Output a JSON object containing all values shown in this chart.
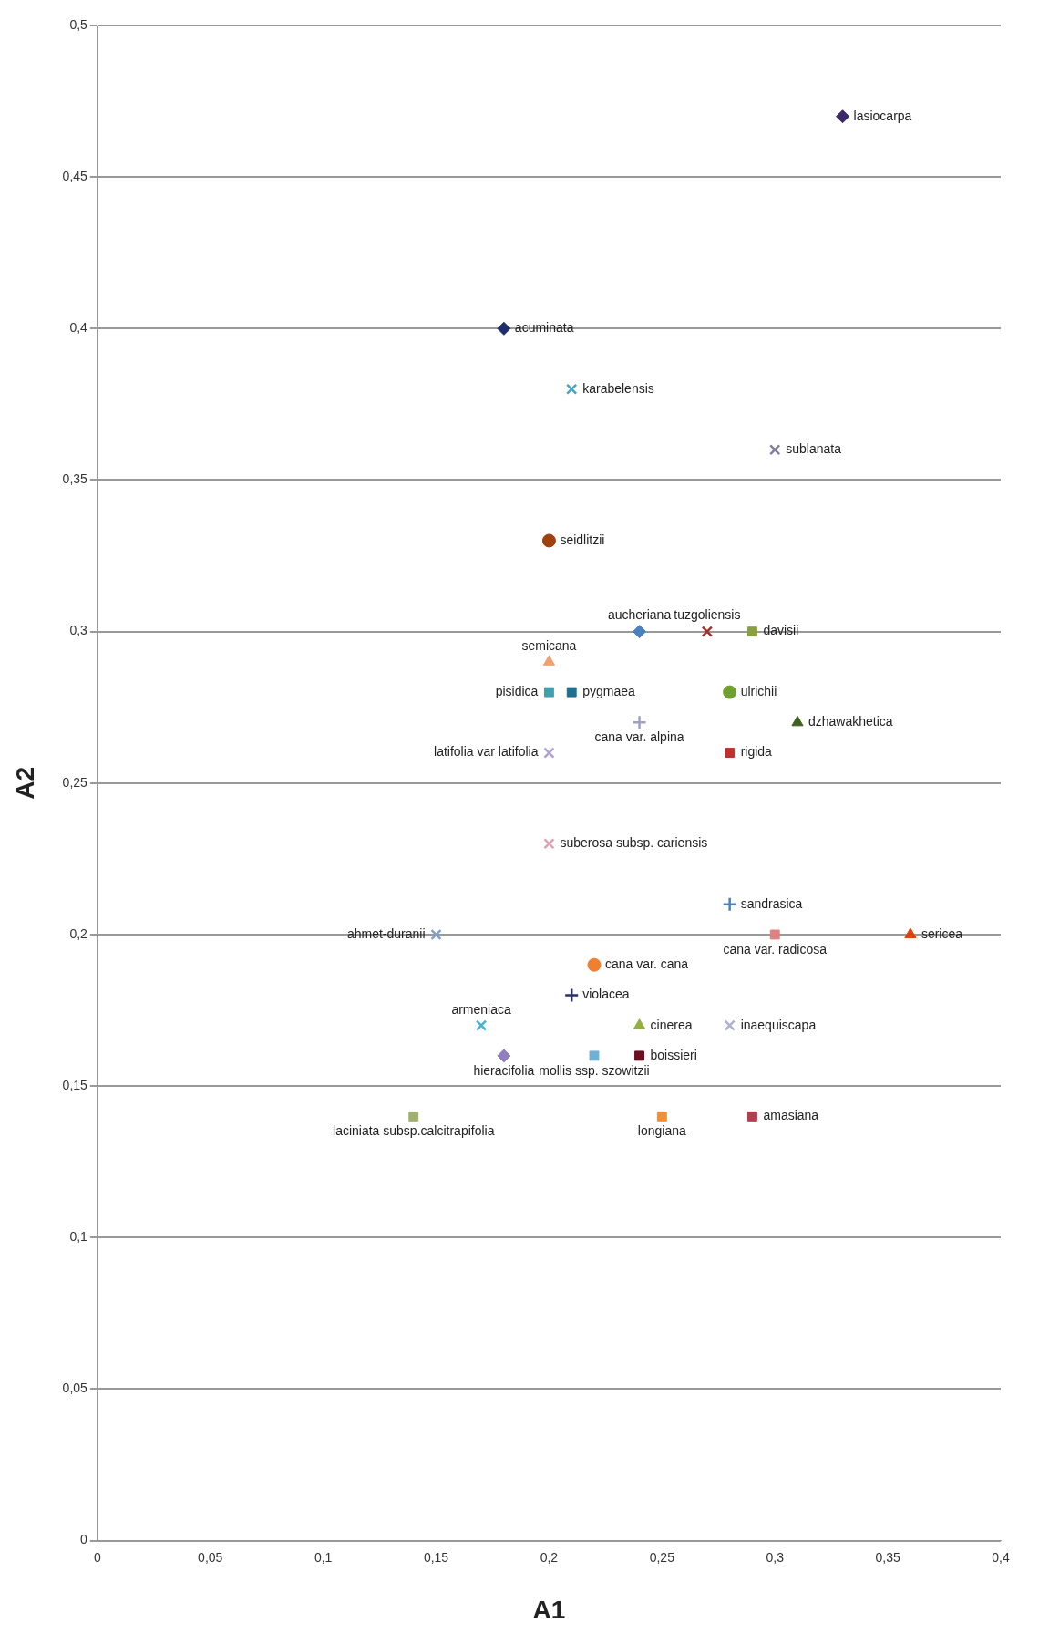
{
  "chart_data": {
    "type": "scatter",
    "xlabel": "A1",
    "ylabel": "A2",
    "grid": "y",
    "xlim": [
      0,
      0.4
    ],
    "xticks": [
      0,
      {
        "value": 0.05,
        "label": "0,05"
      },
      {
        "value": 0.1,
        "label": "0,1"
      },
      {
        "value": 0.15,
        "label": "0,15"
      },
      {
        "value": 0.2,
        "label": "0,2"
      },
      {
        "value": 0.25,
        "label": "0,25"
      },
      {
        "value": 0.3,
        "label": "0,3"
      },
      {
        "value": 0.35,
        "label": "0,35"
      },
      {
        "value": 0.4,
        "label": "0,4"
      }
    ],
    "ylim": [
      0,
      0.5
    ],
    "yticks": [
      0,
      {
        "value": 0.05,
        "label": "0,05"
      },
      {
        "value": 0.1,
        "label": "0,1"
      },
      {
        "value": 0.15,
        "label": "0,15"
      },
      {
        "value": 0.2,
        "label": "0,2"
      },
      {
        "value": 0.25,
        "label": "0,25"
      },
      {
        "value": 0.3,
        "label": "0,3"
      },
      {
        "value": 0.35,
        "label": "0,35"
      },
      {
        "value": 0.4,
        "label": "0,4"
      },
      {
        "value": 0.45,
        "label": "0,45"
      },
      {
        "value": 0.5,
        "label": "0,5"
      }
    ],
    "series": [
      {
        "name": "lasiocarpa",
        "color": "#3b2a6b",
        "marker": "diamond",
        "x": [
          0.33
        ],
        "values": [
          0.47
        ]
      },
      {
        "name": "acuminata",
        "color": "#1f2f6b",
        "marker": "diamond",
        "x": [
          0.18
        ],
        "values": [
          0.4
        ]
      },
      {
        "name": "karabelensis",
        "color": "#4aa3c0",
        "marker": "cross",
        "x": [
          0.21
        ],
        "values": [
          0.38
        ]
      },
      {
        "name": "sublanata",
        "color": "#7f7f9f",
        "marker": "cross",
        "x": [
          0.3
        ],
        "values": [
          0.36
        ]
      },
      {
        "name": "seidlitzii",
        "color": "#a0400a",
        "marker": "circle",
        "x": [
          0.2
        ],
        "values": [
          0.33
        ]
      },
      {
        "name": "aucheriana",
        "color": "#4a7fc0",
        "marker": "diamond",
        "x": [
          0.24
        ],
        "values": [
          0.3
        ]
      },
      {
        "name": "tuzgoliensis",
        "color": "#a03030",
        "marker": "cross",
        "x": [
          0.27
        ],
        "values": [
          0.3
        ]
      },
      {
        "name": "davisii",
        "color": "#8aa040",
        "marker": "square",
        "x": [
          0.29
        ],
        "values": [
          0.3
        ]
      },
      {
        "name": "semicana",
        "color": "#f0a070",
        "marker": "triangle",
        "x": [
          0.2
        ],
        "values": [
          0.29
        ]
      },
      {
        "name": "pisidica",
        "color": "#3fa0b0",
        "marker": "square",
        "x": [
          0.2
        ],
        "values": [
          0.28
        ]
      },
      {
        "name": "pygmaea",
        "color": "#1f6f8f",
        "marker": "square",
        "x": [
          0.21
        ],
        "values": [
          0.28
        ]
      },
      {
        "name": "ulrichii",
        "color": "#70a030",
        "marker": "circle",
        "x": [
          0.28
        ],
        "values": [
          0.28
        ]
      },
      {
        "name": "cana var. alpina",
        "color": "#a0a0c0",
        "marker": "plus",
        "x": [
          0.24
        ],
        "values": [
          0.27
        ]
      },
      {
        "name": "dzhawakhetica",
        "color": "#3f6020",
        "marker": "triangle",
        "x": [
          0.31
        ],
        "values": [
          0.27
        ]
      },
      {
        "name": "latifolia var latifolia",
        "color": "#b0a0d0",
        "marker": "cross",
        "x": [
          0.2
        ],
        "values": [
          0.26
        ]
      },
      {
        "name": "rigida",
        "color": "#c03030",
        "marker": "square",
        "x": [
          0.28
        ],
        "values": [
          0.26
        ]
      },
      {
        "name": "suberosa subsp. cariensis",
        "color": "#e0a0b0",
        "marker": "cross",
        "x": [
          0.2
        ],
        "values": [
          0.23
        ]
      },
      {
        "name": "sandrasica",
        "color": "#4a80c0",
        "marker": "plus",
        "x": [
          0.28
        ],
        "values": [
          0.21
        ]
      },
      {
        "name": "ahmet-duranii",
        "color": "#7fa0d0",
        "marker": "cross",
        "x": [
          0.15
        ],
        "values": [
          0.2
        ]
      },
      {
        "name": "cana var. radicosa",
        "color": "#e08080",
        "marker": "square",
        "x": [
          0.3
        ],
        "values": [
          0.2
        ]
      },
      {
        "name": "sericea",
        "color": "#e04010",
        "marker": "triangle",
        "x": [
          0.36
        ],
        "values": [
          0.2
        ]
      },
      {
        "name": "cana var. cana",
        "color": "#f08030",
        "marker": "circle",
        "x": [
          0.22
        ],
        "values": [
          0.19
        ]
      },
      {
        "name": "violacea",
        "color": "#2a2f6a",
        "marker": "plus",
        "x": [
          0.21
        ],
        "values": [
          0.18
        ]
      },
      {
        "name": "armeniaca",
        "color": "#4ab0d0",
        "marker": "cross",
        "x": [
          0.17
        ],
        "values": [
          0.17
        ]
      },
      {
        "name": "cinerea",
        "color": "#90b040",
        "marker": "triangle",
        "x": [
          0.24
        ],
        "values": [
          0.17
        ]
      },
      {
        "name": "inaequiscapa",
        "color": "#b0b0d0",
        "marker": "cross",
        "x": [
          0.28
        ],
        "values": [
          0.17
        ]
      },
      {
        "name": "hieracifolia",
        "color": "#9080c0",
        "marker": "diamond",
        "x": [
          0.18
        ],
        "values": [
          0.16
        ]
      },
      {
        "name": "mollis ssp. szowitzii",
        "color": "#70b0d0",
        "marker": "square",
        "x": [
          0.22
        ],
        "values": [
          0.16
        ]
      },
      {
        "name": "boissieri",
        "color": "#6a1020",
        "marker": "square",
        "x": [
          0.24
        ],
        "values": [
          0.16
        ]
      },
      {
        "name": "laciniata subsp.calcitrapifolia",
        "color": "#a0b070",
        "marker": "square",
        "x": [
          0.14
        ],
        "values": [
          0.14
        ]
      },
      {
        "name": "longiana",
        "color": "#f09030",
        "marker": "square",
        "x": [
          0.25
        ],
        "values": [
          0.14
        ]
      },
      {
        "name": "amasiana",
        "color": "#b04050",
        "marker": "square",
        "x": [
          0.29
        ],
        "values": [
          0.14
        ]
      }
    ]
  }
}
